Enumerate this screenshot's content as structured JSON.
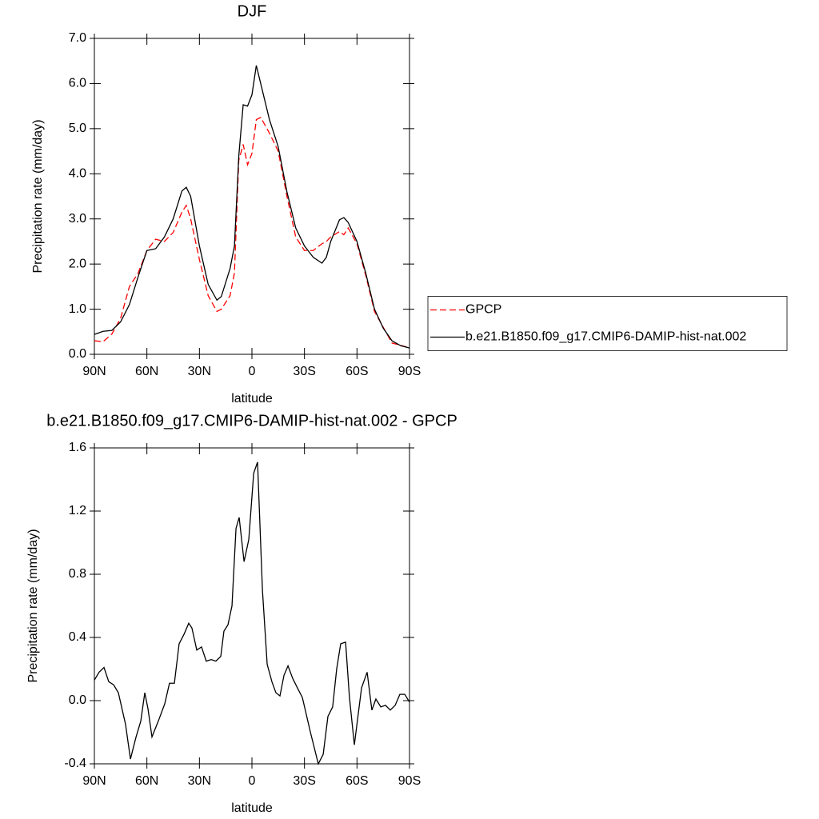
{
  "chart_data": [
    {
      "type": "line",
      "title": "DJF",
      "xlabel": "latitude",
      "ylabel": "Precipitation rate (mm/day)",
      "x": [
        90,
        85,
        80,
        75,
        70,
        65,
        60,
        55,
        50,
        45,
        40,
        37.5,
        35,
        30,
        25,
        20,
        17.5,
        12.5,
        10,
        7.5,
        5,
        2.5,
        0,
        -2.5,
        -5,
        -10,
        -15,
        -20,
        -25,
        -30,
        -35,
        -40,
        -42.5,
        -45,
        -50,
        -52.5,
        -55,
        -60,
        -65,
        -70,
        -75,
        -80,
        -85,
        -90
      ],
      "xlim": [
        90,
        -90
      ],
      "xticks": [
        {
          "value": 90,
          "label": "90N"
        },
        {
          "value": 60,
          "label": "60N"
        },
        {
          "value": 30,
          "label": "30N"
        },
        0,
        {
          "value": -30,
          "label": "30S"
        },
        {
          "value": -60,
          "label": "60S"
        },
        {
          "value": -90,
          "label": "90S"
        }
      ],
      "ylim": [
        0,
        7
      ],
      "yticks": [
        {
          "value": 0,
          "label": "0.0"
        },
        {
          "value": 1,
          "label": "1.0"
        },
        {
          "value": 2,
          "label": "2.0"
        },
        {
          "value": 3,
          "label": "3.0"
        },
        {
          "value": 4,
          "label": "4.0"
        },
        {
          "value": 5,
          "label": "5.0"
        },
        {
          "value": 6,
          "label": "6.0"
        },
        {
          "value": 7,
          "label": "7.0"
        }
      ],
      "legend": "right",
      "series": [
        {
          "name": "GPCP",
          "color": "#ff0000",
          "line_style": "dashed",
          "values": [
            0.3,
            0.28,
            0.45,
            0.8,
            1.5,
            1.8,
            2.3,
            2.55,
            2.5,
            2.7,
            3.15,
            3.3,
            3.0,
            2.1,
            1.3,
            0.95,
            1.0,
            1.3,
            1.8,
            4.3,
            4.65,
            4.2,
            4.45,
            5.2,
            5.25,
            4.9,
            4.5,
            3.5,
            2.6,
            2.3,
            2.3,
            2.45,
            2.5,
            2.6,
            2.72,
            2.65,
            2.8,
            2.45,
            1.75,
            0.95,
            0.6,
            0.25,
            0.2,
            0.14
          ]
        },
        {
          "name": "b.e21.B1850.f09_g17.CMIP6-DAMIP-hist-nat.002",
          "color": "#000000",
          "line_style": "solid",
          "values": [
            0.44,
            0.51,
            0.53,
            0.72,
            1.1,
            1.72,
            2.3,
            2.34,
            2.6,
            3.0,
            3.62,
            3.7,
            3.5,
            2.4,
            1.55,
            1.2,
            1.28,
            1.9,
            2.4,
            4.4,
            5.53,
            5.5,
            5.75,
            6.4,
            6.0,
            5.2,
            4.6,
            3.6,
            2.8,
            2.4,
            2.15,
            2.02,
            2.15,
            2.5,
            2.98,
            3.03,
            2.92,
            2.5,
            1.8,
            1.0,
            0.58,
            0.3,
            0.19,
            0.14
          ]
        }
      ]
    },
    {
      "type": "line",
      "title": "b.e21.B1850.f09_g17.CMIP6-DAMIP-hist-nat.002 - GPCP",
      "xlabel": "latitude",
      "ylabel": "Precipitation rate (mm/day)",
      "x": [
        90,
        87.3,
        84.5,
        81.8,
        79,
        76.3,
        72.2,
        69.4,
        66.2,
        63.5,
        61.2,
        59.4,
        57.1,
        53.5,
        49.8,
        47.1,
        44.3,
        41.6,
        38.8,
        36.1,
        34.3,
        31.5,
        28.8,
        26.1,
        23.3,
        20.6,
        17.8,
        16,
        13.7,
        11.4,
        9.1,
        7.3,
        4.5,
        1.8,
        -1,
        -3.2,
        -6,
        -8.7,
        -11.4,
        -13.7,
        -16,
        -18.3,
        -20.6,
        -23.3,
        -26,
        -28.8,
        -33.4,
        -37.9,
        -40.7,
        -43.4,
        -46.1,
        -48.4,
        -50.7,
        -53.5,
        -55.7,
        -58.5,
        -62.6,
        -65.8,
        -68.5,
        -70.8,
        -73.6,
        -76.3,
        -79,
        -81.8,
        -84.5,
        -87.3,
        -90
      ],
      "xlim": [
        90,
        -90
      ],
      "xticks": [
        {
          "value": 90,
          "label": "90N"
        },
        {
          "value": 60,
          "label": "60N"
        },
        {
          "value": 30,
          "label": "30N"
        },
        0,
        {
          "value": -30,
          "label": "30S"
        },
        {
          "value": -60,
          "label": "60S"
        },
        {
          "value": -90,
          "label": "90S"
        }
      ],
      "ylim": [
        -0.4,
        1.6
      ],
      "yticks": [
        -0.4,
        {
          "value": 0,
          "label": "0.0"
        },
        0.4,
        0.8,
        1.2,
        1.6
      ],
      "series": [
        {
          "color": "#000000",
          "line_style": "solid",
          "values": [
            0.13,
            0.18,
            0.21,
            0.12,
            0.1,
            0.05,
            -0.15,
            -0.37,
            -0.23,
            -0.13,
            0.05,
            -0.05,
            -0.23,
            -0.13,
            -0.02,
            0.11,
            0.11,
            0.36,
            0.42,
            0.49,
            0.46,
            0.32,
            0.34,
            0.25,
            0.26,
            0.25,
            0.28,
            0.44,
            0.48,
            0.6,
            1.09,
            1.16,
            0.88,
            1.02,
            1.44,
            1.51,
            0.7,
            0.23,
            0.12,
            0.05,
            0.03,
            0.16,
            0.22,
            0.14,
            0.08,
            0.02,
            -0.2,
            -0.4,
            -0.34,
            -0.1,
            -0.04,
            0.2,
            0.36,
            0.37,
            0.02,
            -0.28,
            0.08,
            0.18,
            -0.06,
            0.01,
            -0.04,
            -0.03,
            -0.06,
            -0.03,
            0.04,
            0.04,
            -0.01
          ]
        }
      ]
    }
  ]
}
